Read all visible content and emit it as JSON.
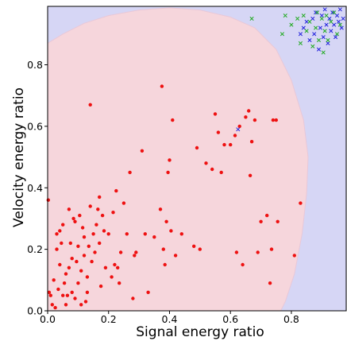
{
  "chart_data": {
    "type": "scatter",
    "title": "",
    "xlabel": "Signal energy ratio",
    "ylabel": "Velocity energy ratio",
    "xlim": [
      0.0,
      0.98
    ],
    "ylim": [
      0.0,
      0.99
    ],
    "xticks": [
      "0.0",
      "0.2",
      "0.4",
      "0.6",
      "0.8"
    ],
    "yticks": [
      "0.0",
      "0.2",
      "0.4",
      "0.6",
      "0.8"
    ],
    "grid": false,
    "colors": {
      "background_region": "#d6d6f5",
      "red_region": "#f6d6dc",
      "red_points": "#ee1111",
      "blue_points": "#2222dd",
      "green_points": "#22aa22"
    },
    "region_boundary": [
      [
        0.0,
        0.87
      ],
      [
        0.05,
        0.9
      ],
      [
        0.12,
        0.935
      ],
      [
        0.2,
        0.96
      ],
      [
        0.3,
        0.978
      ],
      [
        0.4,
        0.985
      ],
      [
        0.5,
        0.978
      ],
      [
        0.6,
        0.955
      ],
      [
        0.68,
        0.92
      ],
      [
        0.75,
        0.85
      ],
      [
        0.8,
        0.75
      ],
      [
        0.84,
        0.62
      ],
      [
        0.855,
        0.5
      ],
      [
        0.85,
        0.38
      ],
      [
        0.835,
        0.25
      ],
      [
        0.81,
        0.12
      ],
      [
        0.78,
        0.03
      ],
      [
        0.765,
        0.0
      ]
    ],
    "series": [
      {
        "marker": "dot",
        "color": "#ee1111",
        "points": [
          [
            0.002,
            0.36
          ],
          [
            0.005,
            0.06
          ],
          [
            0.01,
            0.05
          ],
          [
            0.015,
            0.02
          ],
          [
            0.02,
            0.1
          ],
          [
            0.025,
            0.01
          ],
          [
            0.03,
            0.2
          ],
          [
            0.03,
            0.25
          ],
          [
            0.035,
            0.07
          ],
          [
            0.04,
            0.26
          ],
          [
            0.04,
            0.15
          ],
          [
            0.045,
            0.22
          ],
          [
            0.05,
            0.28
          ],
          [
            0.05,
            0.05
          ],
          [
            0.055,
            0.09
          ],
          [
            0.06,
            0.02
          ],
          [
            0.06,
            0.12
          ],
          [
            0.065,
            0.05
          ],
          [
            0.07,
            0.33
          ],
          [
            0.07,
            0.14
          ],
          [
            0.075,
            0.22
          ],
          [
            0.08,
            0.17
          ],
          [
            0.08,
            0.06
          ],
          [
            0.085,
            0.3
          ],
          [
            0.09,
            0.29
          ],
          [
            0.09,
            0.04
          ],
          [
            0.095,
            0.16
          ],
          [
            0.1,
            0.21
          ],
          [
            0.1,
            0.09
          ],
          [
            0.105,
            0.31
          ],
          [
            0.11,
            0.13
          ],
          [
            0.11,
            0.02
          ],
          [
            0.115,
            0.27
          ],
          [
            0.12,
            0.24
          ],
          [
            0.12,
            0.18
          ],
          [
            0.125,
            0.03
          ],
          [
            0.13,
            0.11
          ],
          [
            0.13,
            0.06
          ],
          [
            0.135,
            0.21
          ],
          [
            0.14,
            0.34
          ],
          [
            0.14,
            0.67
          ],
          [
            0.145,
            0.16
          ],
          [
            0.15,
            0.25
          ],
          [
            0.155,
            0.19
          ],
          [
            0.16,
            0.28
          ],
          [
            0.165,
            0.33
          ],
          [
            0.17,
            0.22
          ],
          [
            0.17,
            0.37
          ],
          [
            0.175,
            0.08
          ],
          [
            0.18,
            0.31
          ],
          [
            0.185,
            0.26
          ],
          [
            0.19,
            0.14
          ],
          [
            0.2,
            0.25
          ],
          [
            0.21,
            0.11
          ],
          [
            0.215,
            0.32
          ],
          [
            0.22,
            0.15
          ],
          [
            0.225,
            0.39
          ],
          [
            0.23,
            0.14
          ],
          [
            0.235,
            0.09
          ],
          [
            0.24,
            0.19
          ],
          [
            0.25,
            0.35
          ],
          [
            0.26,
            0.25
          ],
          [
            0.27,
            0.45
          ],
          [
            0.28,
            0.04
          ],
          [
            0.285,
            0.18
          ],
          [
            0.29,
            0.19
          ],
          [
            0.31,
            0.52
          ],
          [
            0.32,
            0.25
          ],
          [
            0.33,
            0.06
          ],
          [
            0.35,
            0.24
          ],
          [
            0.37,
            0.33
          ],
          [
            0.375,
            0.73
          ],
          [
            0.38,
            0.2
          ],
          [
            0.385,
            0.15
          ],
          [
            0.39,
            0.29
          ],
          [
            0.395,
            0.45
          ],
          [
            0.4,
            0.49
          ],
          [
            0.405,
            0.26
          ],
          [
            0.41,
            0.62
          ],
          [
            0.42,
            0.18
          ],
          [
            0.44,
            0.25
          ],
          [
            0.48,
            0.21
          ],
          [
            0.49,
            0.53
          ],
          [
            0.5,
            0.2
          ],
          [
            0.52,
            0.48
          ],
          [
            0.54,
            0.46
          ],
          [
            0.55,
            0.64
          ],
          [
            0.56,
            0.58
          ],
          [
            0.57,
            0.45
          ],
          [
            0.58,
            0.54
          ],
          [
            0.6,
            0.54
          ],
          [
            0.615,
            0.57
          ],
          [
            0.62,
            0.19
          ],
          [
            0.63,
            0.6
          ],
          [
            0.64,
            0.15
          ],
          [
            0.65,
            0.63
          ],
          [
            0.66,
            0.65
          ],
          [
            0.665,
            0.44
          ],
          [
            0.67,
            0.55
          ],
          [
            0.68,
            0.62
          ],
          [
            0.69,
            0.19
          ],
          [
            0.7,
            0.29
          ],
          [
            0.72,
            0.31
          ],
          [
            0.73,
            0.09
          ],
          [
            0.735,
            0.2
          ],
          [
            0.74,
            0.62
          ],
          [
            0.75,
            0.62
          ],
          [
            0.755,
            0.29
          ],
          [
            0.81,
            0.18
          ],
          [
            0.83,
            0.35
          ]
        ]
      },
      {
        "marker": "cross",
        "color": "#2222dd",
        "points": [
          [
            0.625,
            0.59
          ],
          [
            0.83,
            0.9
          ],
          [
            0.84,
            0.92
          ],
          [
            0.85,
            0.94
          ],
          [
            0.86,
            0.88
          ],
          [
            0.87,
            0.95
          ],
          [
            0.875,
            0.9
          ],
          [
            0.88,
            0.97
          ],
          [
            0.89,
            0.85
          ],
          [
            0.895,
            0.92
          ],
          [
            0.9,
            0.96
          ],
          [
            0.905,
            0.89
          ],
          [
            0.91,
            0.98
          ],
          [
            0.915,
            0.93
          ],
          [
            0.92,
            0.87
          ],
          [
            0.925,
            0.95
          ],
          [
            0.93,
            0.91
          ],
          [
            0.935,
            0.97
          ],
          [
            0.94,
            0.93
          ],
          [
            0.945,
            0.89
          ],
          [
            0.95,
            0.96
          ],
          [
            0.955,
            0.94
          ],
          [
            0.96,
            0.98
          ],
          [
            0.965,
            0.92
          ],
          [
            0.97,
            0.95
          ]
        ]
      },
      {
        "marker": "cross",
        "color": "#22aa22",
        "points": [
          [
            0.67,
            0.95
          ],
          [
            0.77,
            0.9
          ],
          [
            0.78,
            0.96
          ],
          [
            0.8,
            0.93
          ],
          [
            0.82,
            0.95
          ],
          [
            0.83,
            0.87
          ],
          [
            0.84,
            0.96
          ],
          [
            0.85,
            0.91
          ],
          [
            0.86,
            0.94
          ],
          [
            0.87,
            0.86
          ],
          [
            0.88,
            0.92
          ],
          [
            0.885,
            0.97
          ],
          [
            0.89,
            0.88
          ],
          [
            0.9,
            0.95
          ],
          [
            0.905,
            0.84
          ],
          [
            0.91,
            0.91
          ],
          [
            0.915,
            0.96
          ],
          [
            0.92,
            0.88
          ],
          [
            0.93,
            0.94
          ],
          [
            0.94,
            0.97
          ],
          [
            0.95,
            0.9
          ],
          [
            0.96,
            0.93
          ]
        ]
      }
    ]
  }
}
